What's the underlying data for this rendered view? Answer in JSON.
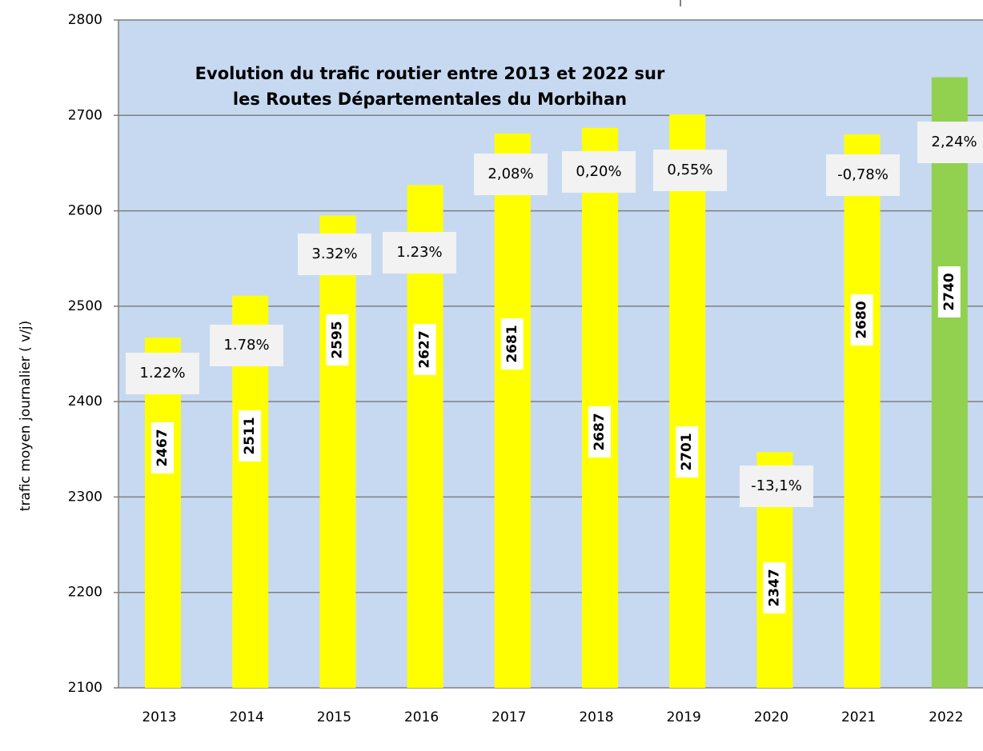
{
  "chart_data": {
    "type": "bar",
    "title": [
      "Evolution du trafic routier entre 2013 et 2022  sur",
      "les Routes Départementales du Morbihan"
    ],
    "y_label": "trafic moyen journalier ( v/j)",
    "categories": [
      "2013",
      "2014",
      "2015",
      "2016",
      "2017",
      "2018",
      "2019",
      "2020",
      "2021",
      "2022"
    ],
    "values": [
      2467,
      2511,
      2595,
      2627,
      2681,
      2687,
      2701,
      2347,
      2680,
      2740
    ],
    "colors": [
      "#ffff00",
      "#ffff00",
      "#ffff00",
      "#ffff00",
      "#ffff00",
      "#ffff00",
      "#ffff00",
      "#ffff00",
      "#ffff00",
      "#92d050"
    ],
    "growth_labels": [
      "1.22%",
      "1.78%",
      "3.32%",
      "1.23%",
      "2,08%",
      "0,20%",
      "0,55%",
      "-13,1%",
      "-0,78%",
      "2,24%"
    ],
    "ylim": [
      2100,
      2800
    ],
    "yticks": [
      2100,
      2200,
      2300,
      2400,
      2500,
      2600,
      2700,
      2800
    ],
    "grid": true,
    "background": "#c6d9f1"
  }
}
